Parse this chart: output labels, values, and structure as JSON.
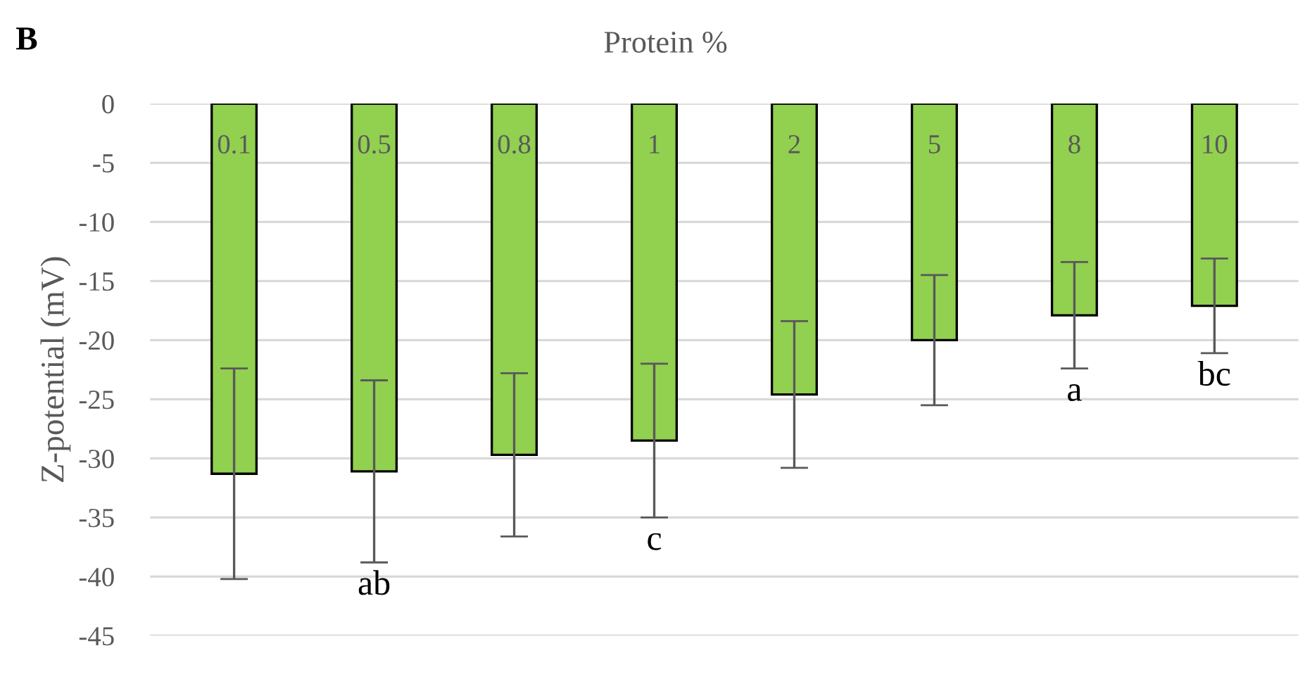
{
  "chart_data": {
    "type": "bar",
    "title": "Protein %",
    "ylabel": "Z-potential (mV)",
    "categories": [
      "0.1",
      "0.5",
      "0.8",
      "1",
      "2",
      "5",
      "8",
      "10"
    ],
    "values": [
      -31.3,
      -31.1,
      -29.7,
      -28.5,
      -24.6,
      -20.0,
      -17.9,
      -17.1
    ],
    "errors": [
      8.9,
      7.7,
      6.9,
      6.5,
      6.2,
      5.5,
      4.5,
      4.0
    ],
    "color": "#92d050",
    "ylim": [
      -45,
      0
    ],
    "yticks": [
      -45,
      -40,
      -35,
      -30,
      -25,
      -20,
      -15,
      -10,
      -5,
      0
    ],
    "grid": "y",
    "annotations": [
      "B",
      {
        "text": "ab",
        "x": "0.5",
        "y": -38.8
      },
      {
        "text": "c",
        "x": "1",
        "y": -35.0
      },
      {
        "text": "a",
        "x": "8",
        "y": -22.4
      },
      {
        "text": "bc",
        "x": "10",
        "y": -21.1
      }
    ]
  }
}
